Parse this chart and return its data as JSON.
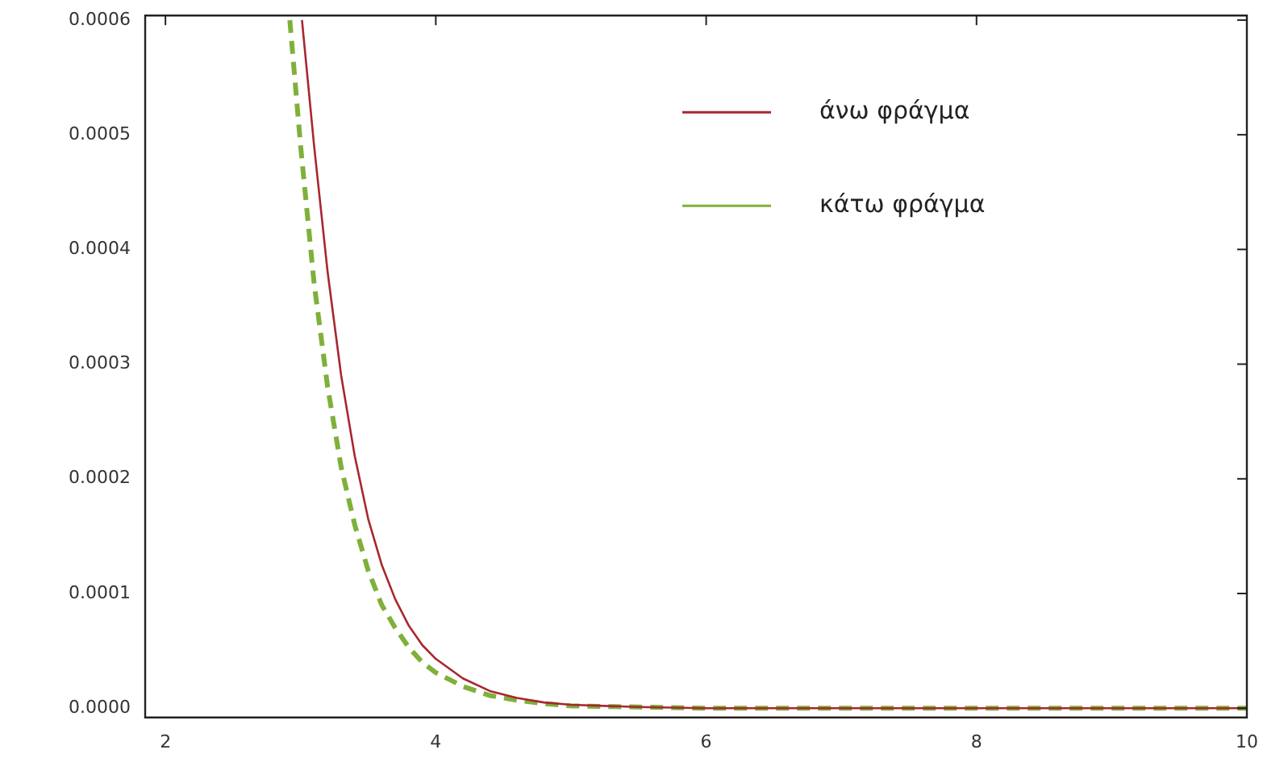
{
  "chart_data": {
    "type": "line",
    "xlim": [
      1.85,
      10
    ],
    "ylim": [
      -8e-06,
      0.000604
    ],
    "xticks": [
      2,
      4,
      6,
      8,
      10
    ],
    "yticks": [
      {
        "value": 0,
        "label": "0.0000"
      },
      {
        "value": 0.0001,
        "label": "0.0001"
      },
      {
        "value": 0.0002,
        "label": "0.0002"
      },
      {
        "value": 0.0003,
        "label": "0.0003"
      },
      {
        "value": 0.0004,
        "label": "0.0004"
      },
      {
        "value": 0.0005,
        "label": "0.0005"
      },
      {
        "value": 0.0006,
        "label": "0.0006"
      }
    ],
    "grid": false,
    "legend": "top right",
    "marker": "none",
    "series": [
      {
        "name": "άνω φράγμα",
        "color": "#a8272f",
        "line_style": "solid",
        "x": [
          3.01,
          3.1,
          3.2,
          3.3,
          3.4,
          3.5,
          3.6,
          3.7,
          3.8,
          3.9,
          4.0,
          4.2,
          4.4,
          4.6,
          4.8,
          5.0,
          5.5,
          6,
          7,
          8,
          9,
          10
        ],
        "values": [
          0.0006,
          0.00049,
          0.00038,
          0.00029,
          0.00022,
          0.000165,
          0.000125,
          9.5e-05,
          7.2e-05,
          5.5e-05,
          4.3e-05,
          2.6e-05,
          1.5e-05,
          9e-06,
          5e-06,
          3e-06,
          1e-06,
          0,
          0,
          0,
          0,
          0
        ]
      },
      {
        "name": "κάτω φράγμα",
        "color": "#7fb03a",
        "line_style": "dashed",
        "x": [
          2.92,
          3.0,
          3.1,
          3.2,
          3.3,
          3.4,
          3.5,
          3.6,
          3.7,
          3.8,
          3.9,
          4.0,
          4.2,
          4.4,
          4.6,
          4.8,
          5.0,
          5.5,
          6,
          7,
          8,
          9,
          10
        ],
        "values": [
          0.0006,
          0.00049,
          0.00037,
          0.00028,
          0.00021,
          0.00016,
          0.00012,
          9e-05,
          7e-05,
          5.3e-05,
          4e-05,
          3.1e-05,
          1.9e-05,
          1.1e-05,
          7e-06,
          4e-06,
          2e-06,
          1e-06,
          0,
          0,
          0,
          0,
          0
        ]
      }
    ]
  }
}
